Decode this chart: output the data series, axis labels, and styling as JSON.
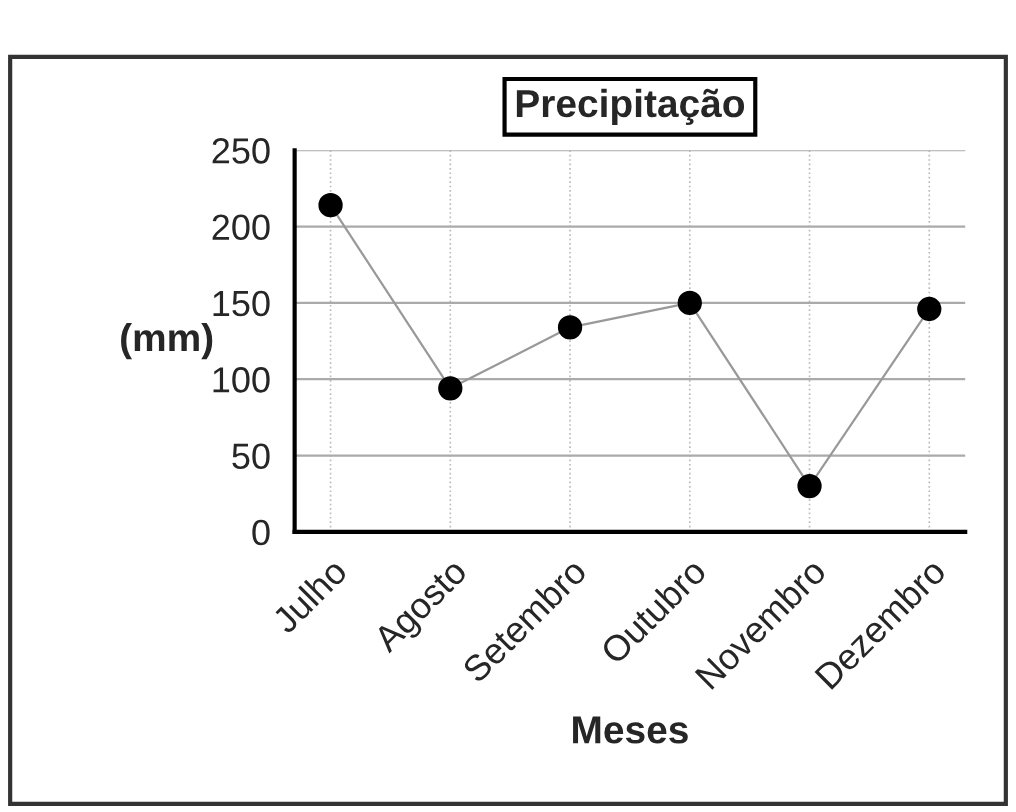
{
  "chart_data": {
    "type": "line",
    "title": "Precipitação",
    "xlabel": "Meses",
    "ylabel": "(mm)",
    "categories": [
      "Julho",
      "Agosto",
      "Setembro",
      "Outubro",
      "Novembro",
      "Dezembro"
    ],
    "series": [
      {
        "color": "#000000",
        "values": [
          214,
          94,
          134,
          150,
          30,
          146
        ]
      }
    ],
    "ylim": [
      0,
      250
    ],
    "yticks": [
      0,
      50,
      100,
      150,
      200,
      250
    ],
    "grid": true,
    "marker": "circle",
    "line_style": "solid"
  }
}
